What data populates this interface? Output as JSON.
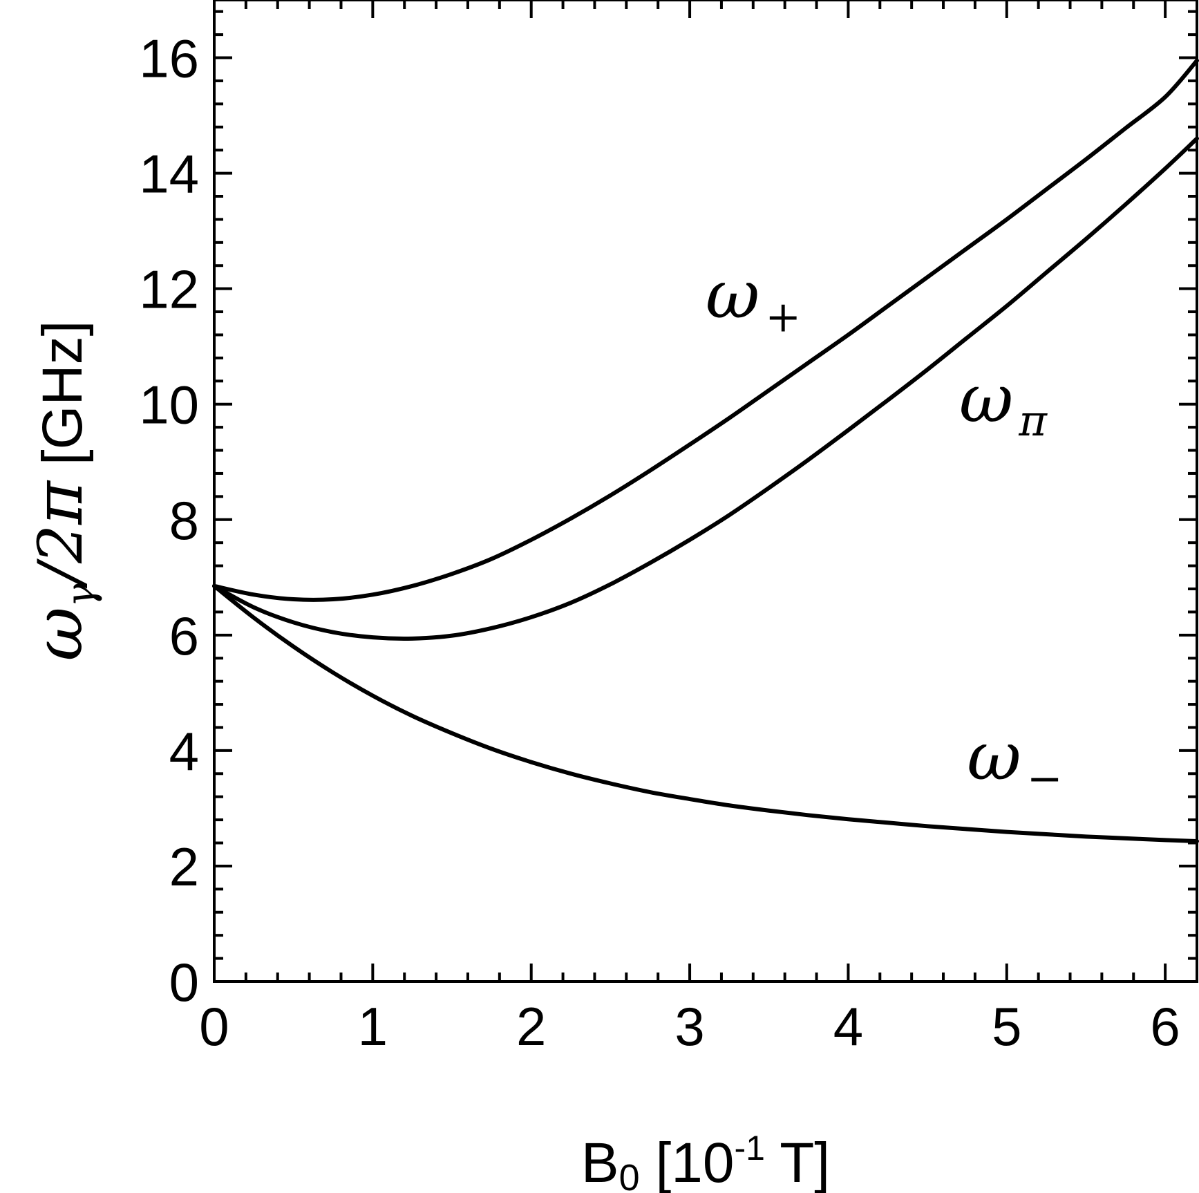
{
  "chart_data": {
    "type": "line",
    "title": "",
    "xlabel": {
      "main": "B",
      "sub": "0",
      "rest": " [10",
      "sup": "-1",
      "unit": " T]"
    },
    "ylabel": {
      "omega": "ω",
      "sub": "γ",
      "rest": "/2",
      "pi": "π",
      "unit": " [GHz]"
    },
    "xlim": [
      0,
      6.2
    ],
    "ylim": [
      0,
      17
    ],
    "xticks": [
      0,
      1,
      2,
      3,
      4,
      5,
      6
    ],
    "yticks": [
      0,
      2,
      4,
      6,
      8,
      10,
      12,
      14,
      16
    ],
    "grid": false,
    "legend": "none",
    "line_color": "#000000",
    "series": [
      {
        "label": {
          "omega": "ω",
          "sub": "+"
        },
        "label_at": [
          3.1,
          11.5
        ],
        "points": [
          [
            0,
            6.85
          ],
          [
            0.25,
            6.7
          ],
          [
            0.5,
            6.62
          ],
          [
            0.75,
            6.62
          ],
          [
            1.0,
            6.7
          ],
          [
            1.25,
            6.85
          ],
          [
            1.5,
            7.06
          ],
          [
            1.75,
            7.32
          ],
          [
            2.0,
            7.65
          ],
          [
            2.25,
            8.02
          ],
          [
            2.5,
            8.42
          ],
          [
            2.75,
            8.85
          ],
          [
            3.0,
            9.3
          ],
          [
            3.25,
            9.76
          ],
          [
            3.5,
            10.24
          ],
          [
            3.75,
            10.72
          ],
          [
            4.0,
            11.2
          ],
          [
            4.25,
            11.7
          ],
          [
            4.5,
            12.2
          ],
          [
            4.75,
            12.7
          ],
          [
            5.0,
            13.2
          ],
          [
            5.25,
            13.72
          ],
          [
            5.5,
            14.24
          ],
          [
            5.75,
            14.78
          ],
          [
            6.0,
            15.32
          ],
          [
            6.2,
            15.95
          ]
        ]
      },
      {
        "label": {
          "omega": "ω",
          "sub": "π"
        },
        "label_at": [
          4.7,
          9.7
        ],
        "points": [
          [
            0,
            6.85
          ],
          [
            0.25,
            6.48
          ],
          [
            0.5,
            6.22
          ],
          [
            0.75,
            6.05
          ],
          [
            1.0,
            5.96
          ],
          [
            1.25,
            5.94
          ],
          [
            1.5,
            5.99
          ],
          [
            1.75,
            6.12
          ],
          [
            2.0,
            6.31
          ],
          [
            2.25,
            6.56
          ],
          [
            2.5,
            6.88
          ],
          [
            2.75,
            7.25
          ],
          [
            3.0,
            7.65
          ],
          [
            3.25,
            8.08
          ],
          [
            3.5,
            8.55
          ],
          [
            3.75,
            9.04
          ],
          [
            4.0,
            9.55
          ],
          [
            4.25,
            10.07
          ],
          [
            4.5,
            10.6
          ],
          [
            4.75,
            11.15
          ],
          [
            5.0,
            11.7
          ],
          [
            5.25,
            12.28
          ],
          [
            5.5,
            12.86
          ],
          [
            5.75,
            13.46
          ],
          [
            6.0,
            14.08
          ],
          [
            6.2,
            14.6
          ]
        ]
      },
      {
        "label": {
          "omega": "ω",
          "sub": "−"
        },
        "label_at": [
          4.75,
          3.5
        ],
        "points": [
          [
            0,
            6.85
          ],
          [
            0.25,
            6.3
          ],
          [
            0.5,
            5.8
          ],
          [
            0.75,
            5.35
          ],
          [
            1.0,
            4.95
          ],
          [
            1.25,
            4.6
          ],
          [
            1.5,
            4.3
          ],
          [
            1.75,
            4.03
          ],
          [
            2.0,
            3.8
          ],
          [
            2.25,
            3.6
          ],
          [
            2.5,
            3.43
          ],
          [
            2.75,
            3.28
          ],
          [
            3.0,
            3.16
          ],
          [
            3.25,
            3.05
          ],
          [
            3.5,
            2.96
          ],
          [
            3.75,
            2.88
          ],
          [
            4.0,
            2.81
          ],
          [
            4.25,
            2.75
          ],
          [
            4.5,
            2.69
          ],
          [
            4.75,
            2.64
          ],
          [
            5.0,
            2.59
          ],
          [
            5.25,
            2.55
          ],
          [
            5.5,
            2.51
          ],
          [
            5.75,
            2.48
          ],
          [
            6.0,
            2.45
          ],
          [
            6.2,
            2.43
          ]
        ]
      }
    ]
  }
}
